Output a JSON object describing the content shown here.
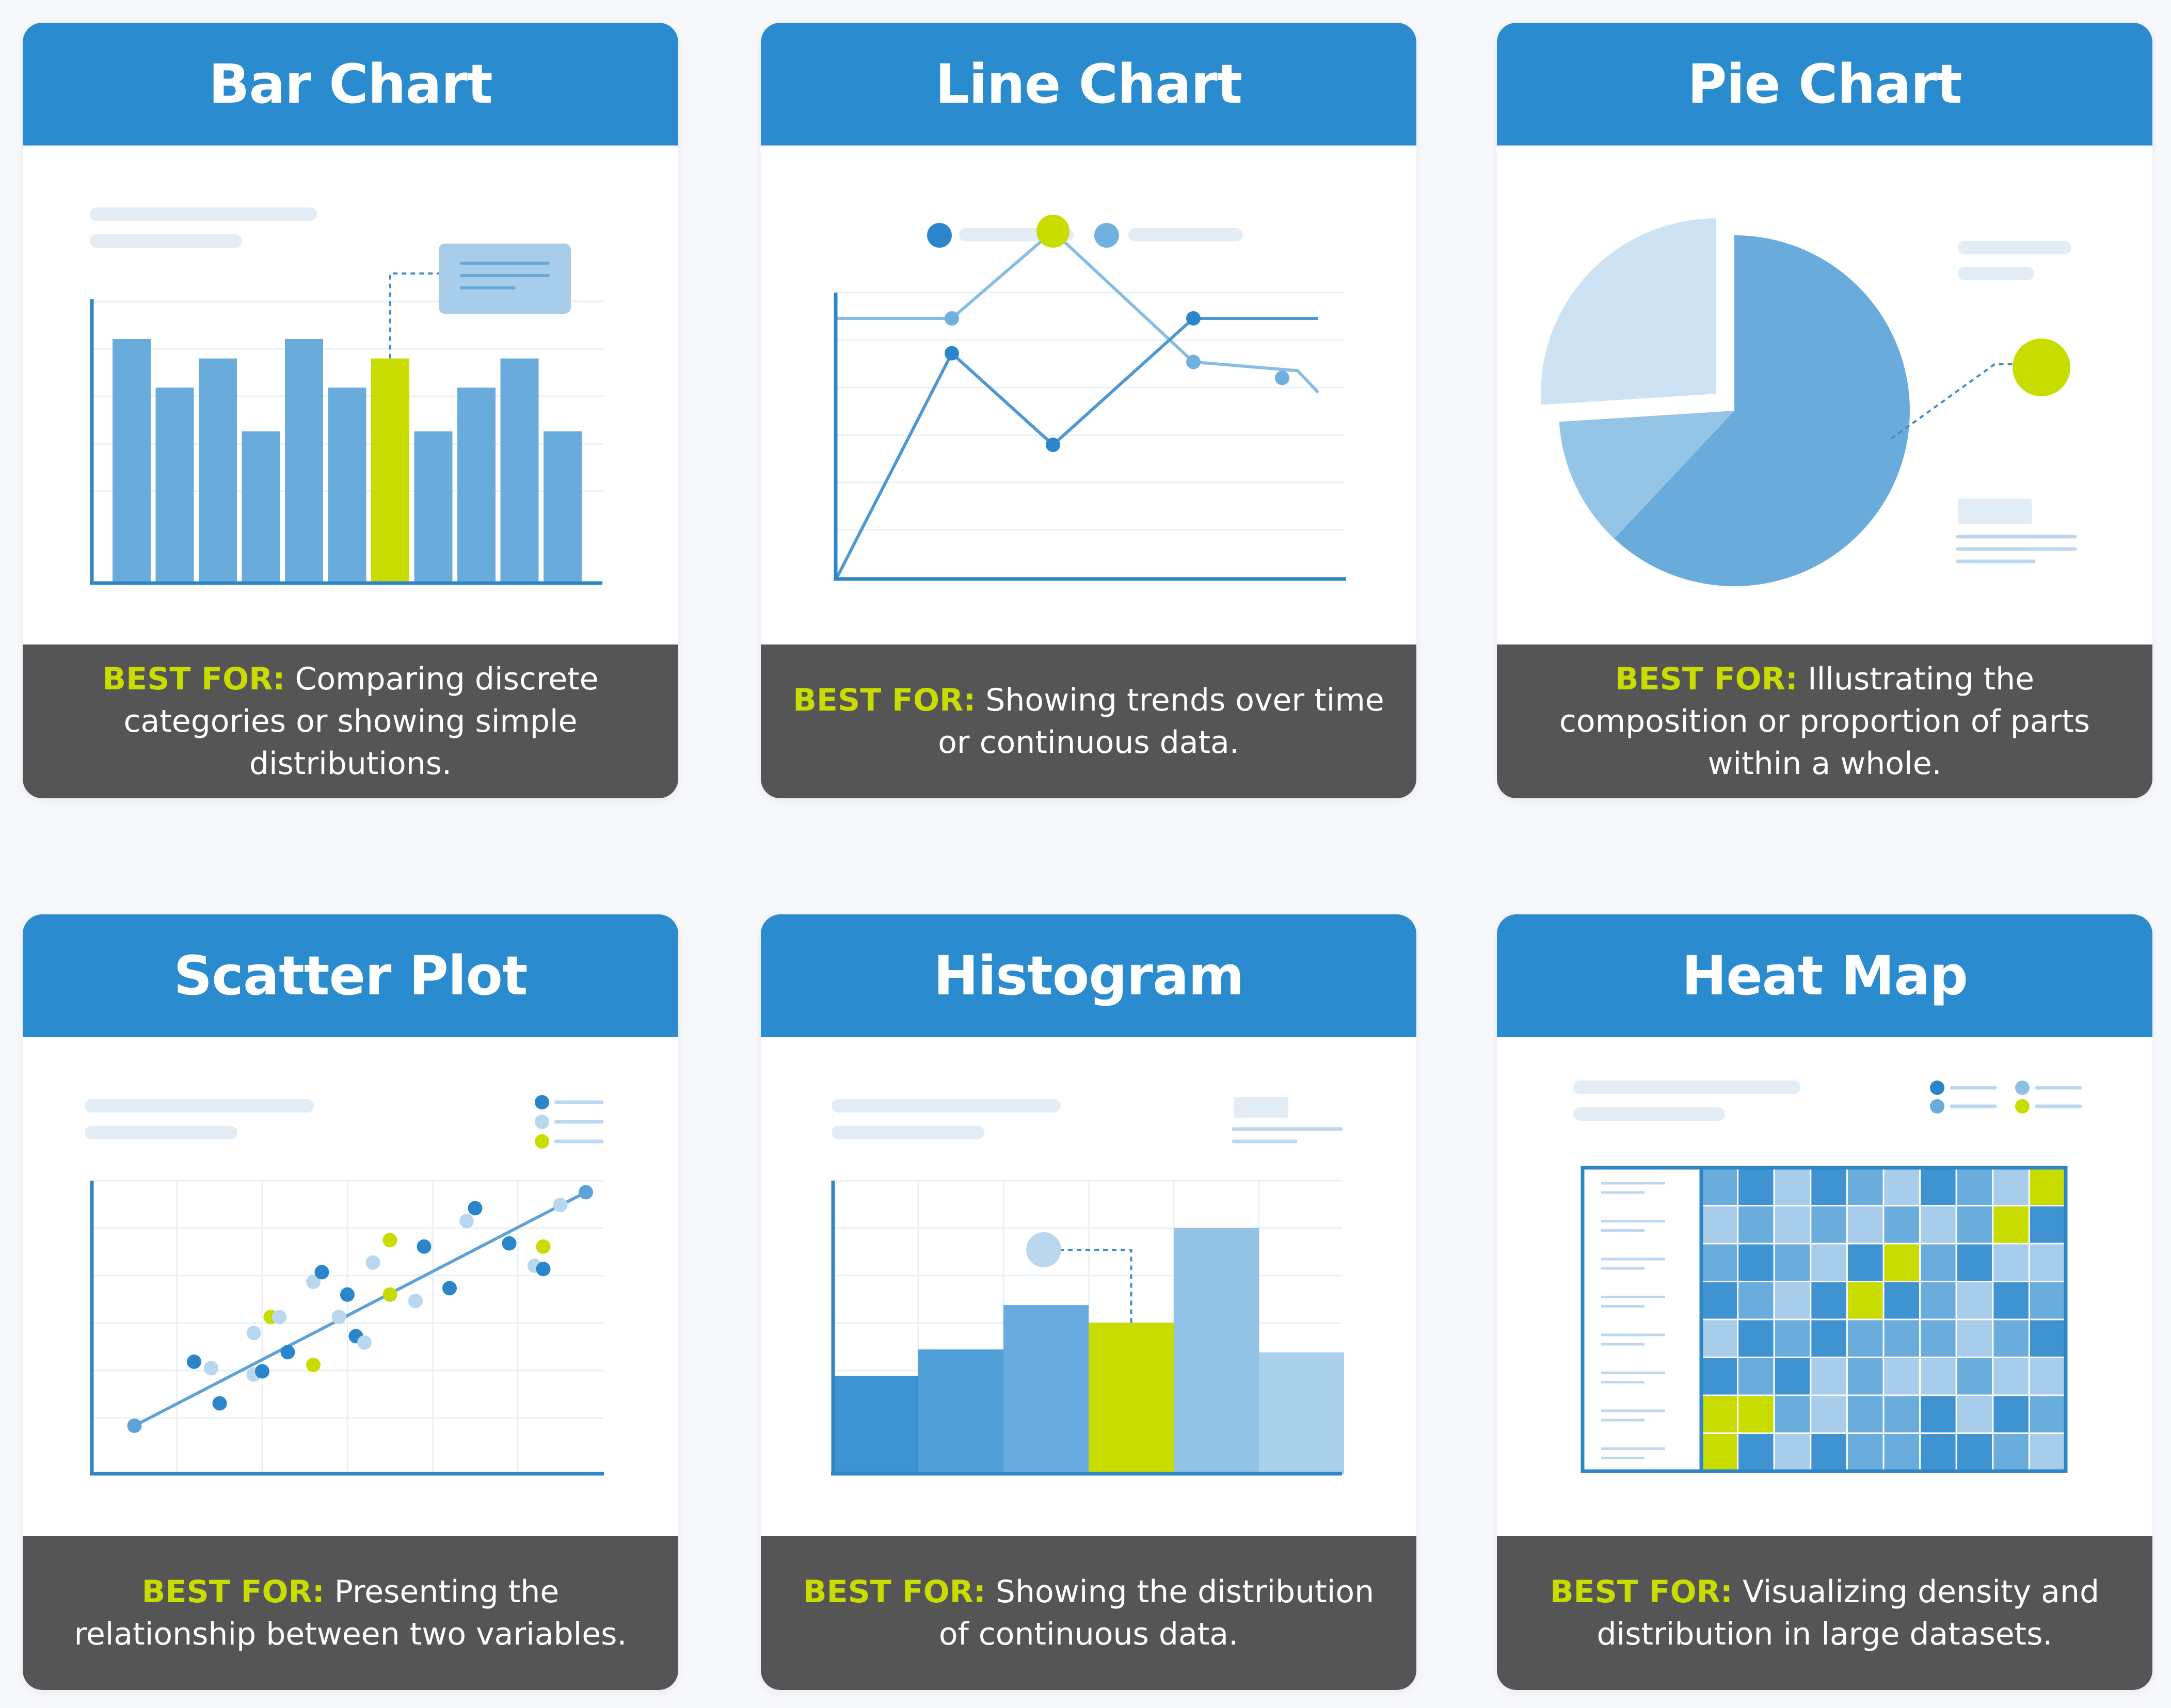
{
  "best_for_label": "BEST FOR:",
  "colors": {
    "header": "#2a8bcf",
    "footer": "#555555",
    "accent": "#c8dc00",
    "bar_blue": "#69acdc",
    "background": "#f7f8fb"
  },
  "cards": [
    {
      "title": "Bar Chart",
      "description": "Comparing discrete categories or showing simple distributions."
    },
    {
      "title": "Line Chart",
      "description": "Showing trends over time or continuous data."
    },
    {
      "title": "Pie Chart",
      "description": "Illustrating the composition or proportion of parts within a whole."
    },
    {
      "title": "Scatter Plot",
      "description": "Presenting the relationship between two variables."
    },
    {
      "title": "Histogram",
      "description": "Showing the distribution of continuous data."
    },
    {
      "title": "Heat Map",
      "description": "Visualizing density and distribution in large datasets."
    }
  ],
  "illustrations": {
    "bar": {
      "values": [
        10,
        8,
        9.2,
        6.2,
        10,
        8,
        9.2,
        6.2,
        8,
        9.2,
        6.2
      ],
      "highlight_index": 6
    },
    "line": {
      "series": [
        {
          "values": [
            6,
            6,
            8,
            5,
            4.8,
            4.3
          ]
        },
        {
          "values": [
            0,
            5.2,
            3.1,
            6,
            6,
            6
          ]
        }
      ],
      "highlight": {
        "series": 0,
        "index": 2
      }
    },
    "pie": {
      "shares": [
        0.62,
        0.12,
        0.26
      ],
      "exploded_index": 2
    },
    "scatter": {
      "points": [
        [
          1.2,
          3.5,
          "dark"
        ],
        [
          1.4,
          3.3,
          "light"
        ],
        [
          1.5,
          2.2,
          "dark"
        ],
        [
          1.9,
          3.1,
          "light"
        ],
        [
          2.0,
          3.2,
          "dark"
        ],
        [
          1.9,
          4.4,
          "light"
        ],
        [
          2.1,
          4.9,
          "accent"
        ],
        [
          2.2,
          4.9,
          "light"
        ],
        [
          2.3,
          3.8,
          "dark"
        ],
        [
          2.6,
          3.4,
          "accent"
        ],
        [
          2.6,
          6.0,
          "light"
        ],
        [
          2.7,
          6.3,
          "dark"
        ],
        [
          2.9,
          4.9,
          "light"
        ],
        [
          3.0,
          5.6,
          "dark"
        ],
        [
          3.1,
          4.3,
          "dark"
        ],
        [
          3.2,
          4.1,
          "light"
        ],
        [
          3.3,
          6.6,
          "light"
        ],
        [
          3.5,
          5.6,
          "accent"
        ],
        [
          3.5,
          7.3,
          "accent"
        ],
        [
          3.9,
          7.1,
          "dark"
        ],
        [
          3.8,
          5.4,
          "light"
        ],
        [
          4.2,
          5.8,
          "dark"
        ],
        [
          4.4,
          7.9,
          "light"
        ],
        [
          4.5,
          8.3,
          "dark"
        ],
        [
          4.9,
          7.2,
          "dark"
        ],
        [
          5.2,
          6.5,
          "light"
        ],
        [
          5.3,
          6.4,
          "dark"
        ],
        [
          5.3,
          7.1,
          "accent"
        ],
        [
          5.5,
          8.4,
          "light"
        ]
      ],
      "trend": [
        [
          0.5,
          1.5
        ],
        [
          5.8,
          8.8
        ]
      ]
    },
    "histogram": {
      "values": [
        3.3,
        4.2,
        5.7,
        5.1,
        8.3,
        4.1
      ],
      "highlight_index": 3
    },
    "heatmap": {
      "rows": [
        [
          1,
          2,
          0,
          2,
          1,
          0,
          2,
          1,
          0,
          "A"
        ],
        [
          0,
          1,
          0,
          1,
          0,
          1,
          0,
          1,
          "A",
          2
        ],
        [
          1,
          2,
          1,
          0,
          2,
          "A",
          1,
          2,
          0,
          0
        ],
        [
          2,
          1,
          0,
          2,
          "A",
          2,
          1,
          0,
          2,
          1
        ],
        [
          0,
          2,
          1,
          2,
          1,
          1,
          1,
          0,
          1,
          2
        ],
        [
          2,
          1,
          2,
          0,
          1,
          0,
          0,
          1,
          0,
          0
        ],
        [
          "A",
          "A",
          1,
          0,
          1,
          1,
          2,
          0,
          2,
          1
        ],
        [
          "A",
          2,
          0,
          2,
          1,
          1,
          2,
          2,
          1,
          0
        ]
      ]
    }
  }
}
